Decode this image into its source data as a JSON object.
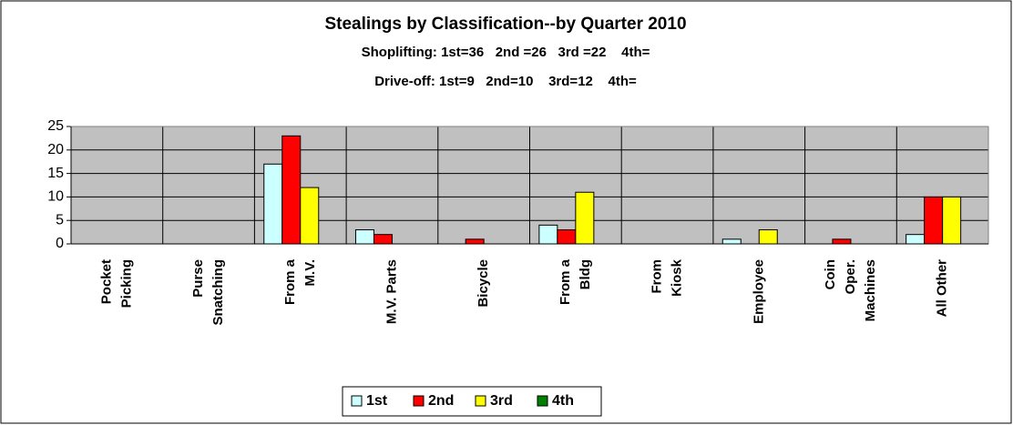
{
  "chart_data": {
    "type": "bar",
    "title": "Stealings by Classification--by Quarter 2010",
    "subtitles": [
      "Shoplifting: 1st=36   2nd =26   3rd =22    4th=",
      "Drive-off: 1st=9   2nd=10    3rd=12    4th="
    ],
    "categories": [
      [
        "Pocket",
        "Picking"
      ],
      [
        "Purse",
        "Snatching"
      ],
      [
        "From a",
        "M.V."
      ],
      [
        "M.V. Parts"
      ],
      [
        "Bicycle"
      ],
      [
        "From a",
        "Bldg"
      ],
      [
        "From",
        "Kiosk"
      ],
      [
        "Employee"
      ],
      [
        "Coin",
        "Oper.",
        "Machines"
      ],
      [
        "All Other"
      ]
    ],
    "series": [
      {
        "name": "1st",
        "color": "#ccffff",
        "values": [
          0,
          0,
          17,
          3,
          0,
          4,
          0,
          1,
          0,
          2
        ]
      },
      {
        "name": "2nd",
        "color": "#ff0000",
        "values": [
          0,
          0,
          23,
          2,
          1,
          3,
          0,
          0,
          1,
          10
        ]
      },
      {
        "name": "3rd",
        "color": "#ffff00",
        "values": [
          0,
          0,
          12,
          0,
          0,
          11,
          0,
          3,
          0,
          10
        ]
      },
      {
        "name": "4th",
        "color": "#008000",
        "values": [
          0,
          0,
          0,
          0,
          0,
          0,
          0,
          0,
          0,
          0
        ]
      }
    ],
    "ylim": [
      0,
      25
    ],
    "yticks": [
      0,
      5,
      10,
      15,
      20,
      25
    ],
    "grid": true,
    "legend": "bottom"
  }
}
